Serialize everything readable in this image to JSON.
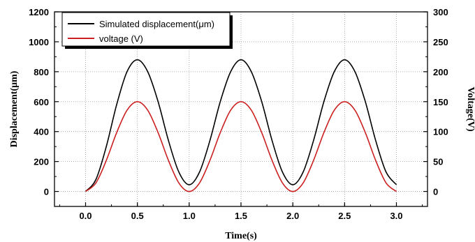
{
  "chart_data": {
    "type": "line",
    "xlabel": "Time(s)",
    "ylabel_left": "Displacement(μm)",
    "ylabel_right": "Voltage(V)",
    "xlim": [
      -0.3,
      3.3
    ],
    "ylim_left": [
      -100,
      1200
    ],
    "ylim_right": [
      -25,
      300
    ],
    "x_ticks": [
      "0.0",
      "0.5",
      "1.0",
      "1.5",
      "2.0",
      "2.5",
      "3.0"
    ],
    "y_ticks_left": [
      "0",
      "200",
      "400",
      "600",
      "800",
      "1000",
      "1200"
    ],
    "y_ticks_right": [
      "0",
      "50",
      "100",
      "150",
      "200",
      "250",
      "300"
    ],
    "grid": "dotted",
    "legend_position": "top-left",
    "series": [
      {
        "name": "Simulated displacement(μm)",
        "axis": "left",
        "color": "#000000",
        "x": [
          0.0,
          0.1,
          0.2,
          0.3,
          0.4,
          0.5,
          0.6,
          0.7,
          0.8,
          0.9,
          1.0,
          1.1,
          1.2,
          1.3,
          1.4,
          1.5,
          1.6,
          1.7,
          1.8,
          1.9,
          2.0,
          2.1,
          2.2,
          2.3,
          2.4,
          2.5,
          2.6,
          2.7,
          2.8,
          2.9,
          3.0
        ],
        "values": [
          0,
          80,
          300,
          580,
          800,
          880,
          800,
          600,
          340,
          130,
          45,
          130,
          340,
          600,
          800,
          880,
          800,
          600,
          340,
          130,
          45,
          130,
          340,
          600,
          800,
          880,
          800,
          600,
          340,
          130,
          45
        ]
      },
      {
        "name": "voltage (V)",
        "axis": "right",
        "color": "#cc1f1f",
        "x": [
          0.0,
          0.1,
          0.2,
          0.3,
          0.4,
          0.5,
          0.6,
          0.7,
          0.8,
          0.9,
          1.0,
          1.1,
          1.2,
          1.3,
          1.4,
          1.5,
          1.6,
          1.7,
          1.8,
          1.9,
          2.0,
          2.1,
          2.2,
          2.3,
          2.4,
          2.5,
          2.6,
          2.7,
          2.8,
          2.9,
          3.0
        ],
        "values": [
          0,
          14.3,
          51.8,
          98.2,
          135.7,
          150,
          135.7,
          98.2,
          51.8,
          14.3,
          0,
          14.3,
          51.8,
          98.2,
          135.7,
          150,
          135.7,
          98.2,
          51.8,
          14.3,
          0,
          14.3,
          51.8,
          98.2,
          135.7,
          150,
          135.7,
          98.2,
          51.8,
          14.3,
          0
        ]
      }
    ]
  }
}
